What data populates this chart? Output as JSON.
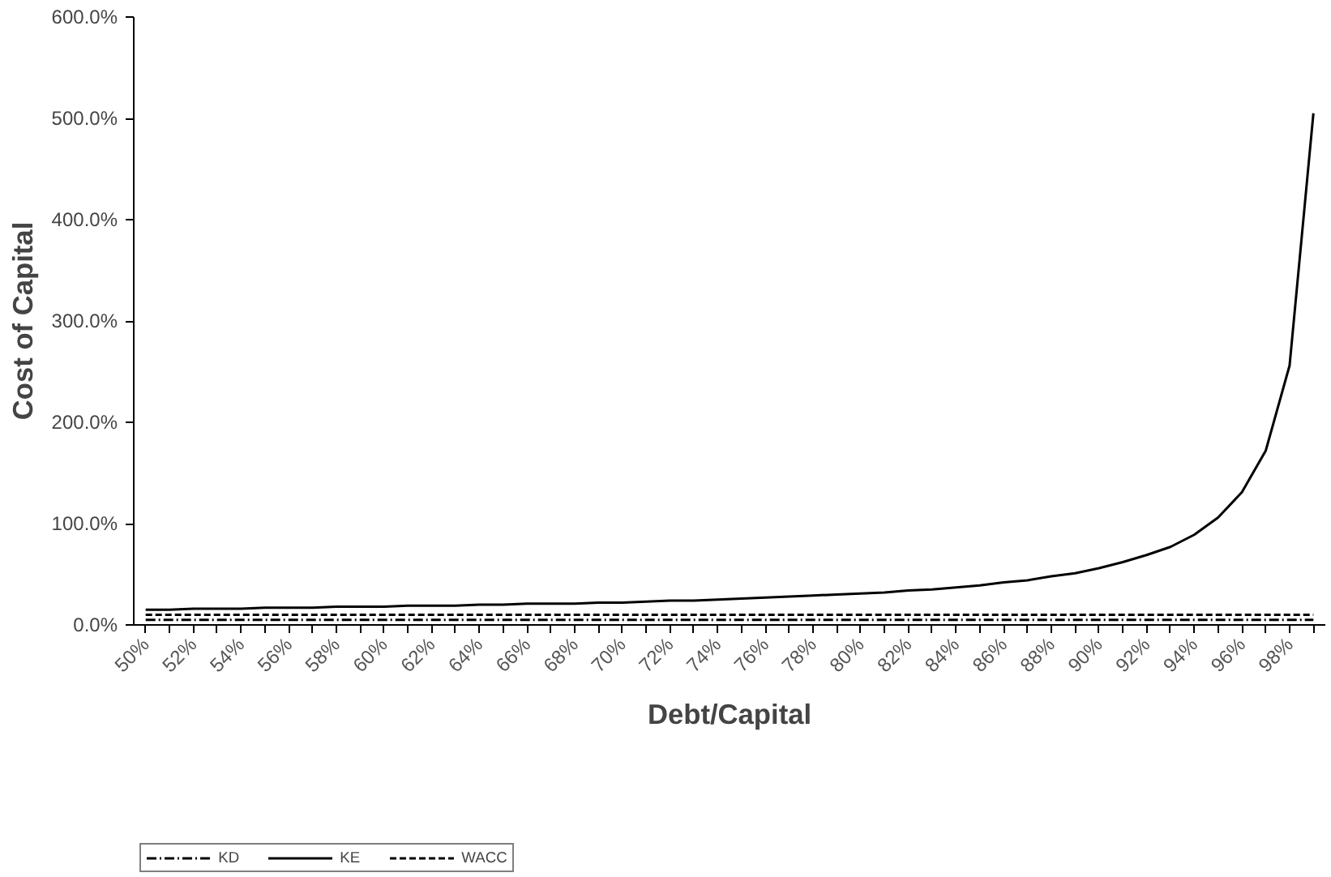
{
  "chart_data": {
    "type": "line",
    "xlabel": "Debt/Capital",
    "ylabel": "Cost of Capital",
    "categories": [
      "50%",
      null,
      "52%",
      null,
      "54%",
      null,
      "56%",
      null,
      "58%",
      null,
      "60%",
      null,
      "62%",
      null,
      "64%",
      null,
      "66%",
      null,
      "68%",
      null,
      "70%",
      null,
      "72%",
      null,
      "74%",
      null,
      "76%",
      null,
      "78%",
      null,
      "80%",
      null,
      "82%",
      null,
      "84%",
      null,
      "86%",
      null,
      "88%",
      null,
      "90%",
      null,
      "92%",
      null,
      "94%",
      null,
      "96%",
      null,
      "98%",
      null
    ],
    "series": [
      {
        "name": "KD",
        "color": "#000000",
        "line_style": "dashdot",
        "values": [
          5,
          5,
          5,
          5,
          5,
          5,
          5,
          5,
          5,
          5,
          5,
          5,
          5,
          5,
          5,
          5,
          5,
          5,
          5,
          5,
          5,
          5,
          5,
          5,
          5,
          5,
          5,
          5,
          5,
          5,
          5,
          5,
          5,
          5,
          5,
          5,
          5,
          5,
          5,
          5,
          5,
          5,
          5,
          5,
          5,
          5,
          5,
          5,
          5,
          5
        ]
      },
      {
        "name": "KE",
        "color": "#000000",
        "line_style": "solid",
        "values": [
          15,
          15,
          16,
          16,
          16,
          17,
          17,
          17,
          18,
          18,
          18,
          19,
          19,
          19,
          20,
          20,
          21,
          21,
          21,
          22,
          22,
          23,
          24,
          24,
          25,
          26,
          27,
          28,
          29,
          30,
          31,
          32,
          34,
          35,
          37,
          39,
          42,
          44,
          48,
          51,
          56,
          62,
          69,
          77,
          89,
          106,
          131,
          172,
          256,
          505
        ]
      },
      {
        "name": "WACC",
        "color": "#000000",
        "line_style": "dashed",
        "values": [
          10,
          10,
          10,
          10,
          10,
          10,
          10,
          10,
          10,
          10,
          10,
          10,
          10,
          10,
          10,
          10,
          10,
          10,
          10,
          10,
          10,
          10,
          10,
          10,
          10,
          10,
          10,
          10,
          10,
          10,
          10,
          10,
          10,
          10,
          10,
          10,
          10,
          10,
          10,
          10,
          10,
          10,
          10,
          10,
          10,
          10,
          10,
          10,
          10,
          10
        ]
      }
    ],
    "ylim": [
      0,
      600
    ],
    "yticks": [
      {
        "value": 0,
        "label": "0.0%"
      },
      {
        "value": 100,
        "label": "100.0%"
      },
      {
        "value": 200,
        "label": "200.0%"
      },
      {
        "value": 300,
        "label": "300.0%"
      },
      {
        "value": 400,
        "label": "400.0%"
      },
      {
        "value": 500,
        "label": "500.0%"
      },
      {
        "value": 600,
        "label": "600.0%"
      }
    ],
    "grid": false,
    "legend": "bottom left",
    "marker": "none"
  }
}
